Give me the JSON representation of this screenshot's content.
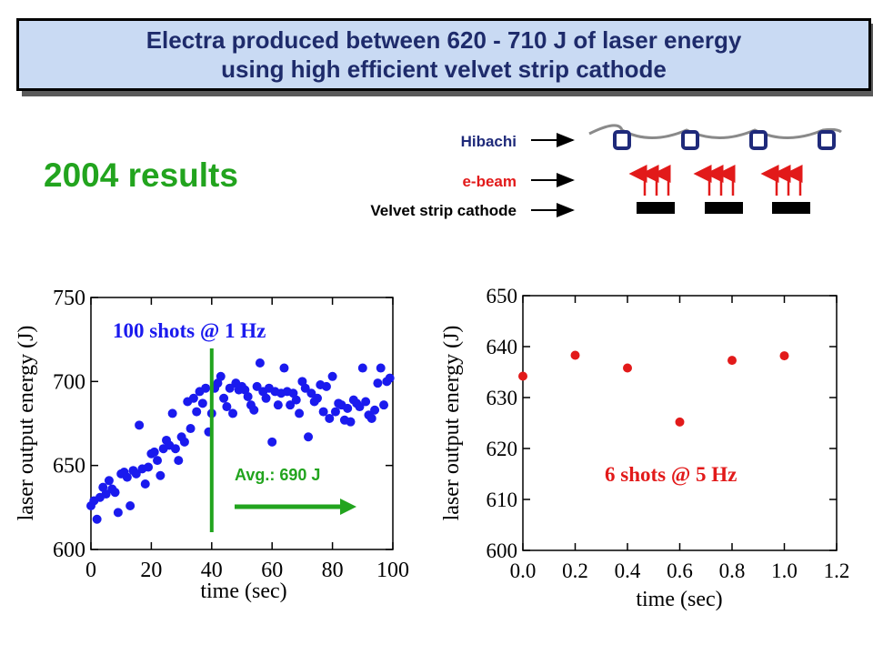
{
  "title": {
    "line1": "Electra produced between 620 - 710 J of laser energy",
    "line2": "using high efficient velvet strip cathode"
  },
  "heading": "2004 results",
  "schematic": {
    "hibachi_label": "Hibachi",
    "ebeam_label": "e-beam",
    "cathode_label": "Velvet strip cathode",
    "colors": {
      "hibachi_text": "#1f2a7a",
      "ebeam": "#e21a1a",
      "cathode": "#000000"
    }
  },
  "chart_data": [
    {
      "type": "scatter",
      "xlabel": "time (sec)",
      "ylabel": "laser output energy (J)",
      "xlim": [
        0,
        100
      ],
      "ylim": [
        600,
        750
      ],
      "xticks": [
        "0",
        "20",
        "40",
        "60",
        "80",
        "100"
      ],
      "yticks": [
        "600",
        "650",
        "700",
        "750"
      ],
      "annotation": "100 shots @ 1 Hz",
      "avg_label": "Avg.: 690 J",
      "avg_marker_x": 40,
      "color": "#1a1aee",
      "marker_color": "#22a41e",
      "points": [
        [
          0,
          626
        ],
        [
          1,
          629
        ],
        [
          2,
          618
        ],
        [
          3,
          631
        ],
        [
          4,
          637
        ],
        [
          5,
          633
        ],
        [
          6,
          641
        ],
        [
          7,
          636
        ],
        [
          8,
          634
        ],
        [
          9,
          622
        ],
        [
          10,
          645
        ],
        [
          11,
          646
        ],
        [
          12,
          643
        ],
        [
          13,
          626
        ],
        [
          14,
          647
        ],
        [
          15,
          645
        ],
        [
          16,
          674
        ],
        [
          17,
          648
        ],
        [
          18,
          639
        ],
        [
          19,
          649
        ],
        [
          20,
          657
        ],
        [
          21,
          658
        ],
        [
          22,
          653
        ],
        [
          23,
          644
        ],
        [
          24,
          660
        ],
        [
          25,
          665
        ],
        [
          26,
          662
        ],
        [
          27,
          681
        ],
        [
          28,
          660
        ],
        [
          29,
          653
        ],
        [
          30,
          667
        ],
        [
          31,
          664
        ],
        [
          32,
          688
        ],
        [
          33,
          672
        ],
        [
          34,
          690
        ],
        [
          35,
          682
        ],
        [
          36,
          694
        ],
        [
          37,
          687
        ],
        [
          38,
          696
        ],
        [
          39,
          670
        ],
        [
          40,
          681
        ],
        [
          41,
          696
        ],
        [
          42,
          699
        ],
        [
          43,
          703
        ],
        [
          44,
          690
        ],
        [
          45,
          685
        ],
        [
          46,
          696
        ],
        [
          47,
          681
        ],
        [
          48,
          699
        ],
        [
          49,
          695
        ],
        [
          50,
          697
        ],
        [
          51,
          695
        ],
        [
          52,
          691
        ],
        [
          53,
          686
        ],
        [
          54,
          683
        ],
        [
          55,
          697
        ],
        [
          56,
          711
        ],
        [
          57,
          694
        ],
        [
          58,
          690
        ],
        [
          59,
          696
        ],
        [
          60,
          664
        ],
        [
          61,
          694
        ],
        [
          62,
          686
        ],
        [
          63,
          693
        ],
        [
          64,
          708
        ],
        [
          65,
          694
        ],
        [
          66,
          686
        ],
        [
          67,
          693
        ],
        [
          68,
          689
        ],
        [
          69,
          681
        ],
        [
          70,
          700
        ],
        [
          71,
          696
        ],
        [
          72,
          667
        ],
        [
          73,
          693
        ],
        [
          74,
          688
        ],
        [
          75,
          690
        ],
        [
          76,
          698
        ],
        [
          77,
          682
        ],
        [
          78,
          697
        ],
        [
          79,
          678
        ],
        [
          80,
          703
        ],
        [
          81,
          682
        ],
        [
          82,
          687
        ],
        [
          83,
          686
        ],
        [
          84,
          677
        ],
        [
          85,
          684
        ],
        [
          86,
          676
        ],
        [
          87,
          689
        ],
        [
          88,
          687
        ],
        [
          89,
          685
        ],
        [
          90,
          708
        ],
        [
          91,
          688
        ],
        [
          92,
          680
        ],
        [
          93,
          678
        ],
        [
          94,
          683
        ],
        [
          95,
          699
        ],
        [
          96,
          708
        ],
        [
          97,
          686
        ],
        [
          98,
          700
        ],
        [
          99,
          702
        ]
      ]
    },
    {
      "type": "scatter",
      "xlabel": "time (sec)",
      "ylabel": "laser output energy (J)",
      "xlim": [
        0,
        1.2
      ],
      "ylim": [
        600,
        650
      ],
      "xticks": [
        "0.0",
        "0.2",
        "0.4",
        "0.6",
        "0.8",
        "1.0",
        "1.2"
      ],
      "yticks": [
        "600",
        "610",
        "620",
        "630",
        "640",
        "650"
      ],
      "annotation": "6 shots @ 5 Hz",
      "color": "#e21a1a",
      "points": [
        [
          0.0,
          634.2
        ],
        [
          0.2,
          638.3
        ],
        [
          0.4,
          635.8
        ],
        [
          0.6,
          625.2
        ],
        [
          0.8,
          637.3
        ],
        [
          1.0,
          638.2
        ]
      ]
    }
  ]
}
